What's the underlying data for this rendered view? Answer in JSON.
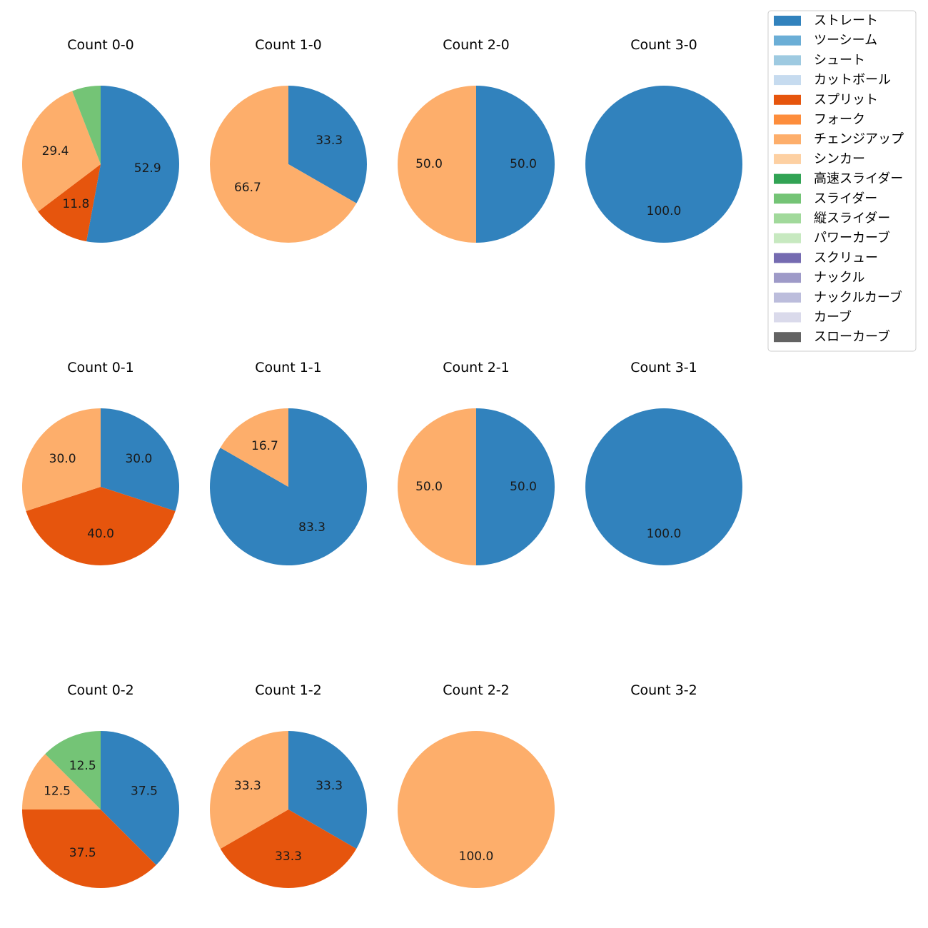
{
  "chart_data": {
    "type": "pie",
    "pitch_types": [
      {
        "name": "ストレート",
        "color": "#3182bd"
      },
      {
        "name": "ツーシーム",
        "color": "#6baed6"
      },
      {
        "name": "シュート",
        "color": "#9ecae1"
      },
      {
        "name": "カットボール",
        "color": "#c6dbef"
      },
      {
        "name": "スプリット",
        "color": "#e6550d"
      },
      {
        "name": "フォーク",
        "color": "#fd8d3c"
      },
      {
        "name": "チェンジアップ",
        "color": "#fdae6b"
      },
      {
        "name": "シンカー",
        "color": "#fdd0a2"
      },
      {
        "name": "高速スライダー",
        "color": "#31a354"
      },
      {
        "name": "スライダー",
        "color": "#74c476"
      },
      {
        "name": "縦スライダー",
        "color": "#a1d99b"
      },
      {
        "name": "パワーカーブ",
        "color": "#c7e9c0"
      },
      {
        "name": "スクリュー",
        "color": "#756bb1"
      },
      {
        "name": "ナックル",
        "color": "#9e9ac8"
      },
      {
        "name": "ナックルカーブ",
        "color": "#bcbddc"
      },
      {
        "name": "カーブ",
        "color": "#dadaeb"
      },
      {
        "name": "スローカーブ",
        "color": "#636363"
      }
    ],
    "panels": [
      {
        "title": "Count 0-0",
        "slices": [
          {
            "pitch": "ストレート",
            "value": 52.9
          },
          {
            "pitch": "スプリット",
            "value": 11.8
          },
          {
            "pitch": "チェンジアップ",
            "value": 29.4
          },
          {
            "pitch": "スライダー",
            "value": 5.9
          }
        ]
      },
      {
        "title": "Count 1-0",
        "slices": [
          {
            "pitch": "ストレート",
            "value": 33.3
          },
          {
            "pitch": "チェンジアップ",
            "value": 66.7
          }
        ]
      },
      {
        "title": "Count 2-0",
        "slices": [
          {
            "pitch": "ストレート",
            "value": 50.0
          },
          {
            "pitch": "チェンジアップ",
            "value": 50.0
          }
        ]
      },
      {
        "title": "Count 3-0",
        "slices": [
          {
            "pitch": "ストレート",
            "value": 100.0
          }
        ]
      },
      {
        "title": "Count 0-1",
        "slices": [
          {
            "pitch": "ストレート",
            "value": 30.0
          },
          {
            "pitch": "スプリット",
            "value": 40.0
          },
          {
            "pitch": "チェンジアップ",
            "value": 30.0
          }
        ]
      },
      {
        "title": "Count 1-1",
        "slices": [
          {
            "pitch": "ストレート",
            "value": 83.3
          },
          {
            "pitch": "チェンジアップ",
            "value": 16.7
          }
        ]
      },
      {
        "title": "Count 2-1",
        "slices": [
          {
            "pitch": "ストレート",
            "value": 50.0
          },
          {
            "pitch": "チェンジアップ",
            "value": 50.0
          }
        ]
      },
      {
        "title": "Count 3-1",
        "slices": [
          {
            "pitch": "ストレート",
            "value": 100.0
          }
        ]
      },
      {
        "title": "Count 0-2",
        "slices": [
          {
            "pitch": "ストレート",
            "value": 37.5
          },
          {
            "pitch": "スプリット",
            "value": 37.5
          },
          {
            "pitch": "チェンジアップ",
            "value": 12.5
          },
          {
            "pitch": "スライダー",
            "value": 12.5
          }
        ]
      },
      {
        "title": "Count 1-2",
        "slices": [
          {
            "pitch": "ストレート",
            "value": 33.3
          },
          {
            "pitch": "スプリット",
            "value": 33.3
          },
          {
            "pitch": "チェンジアップ",
            "value": 33.3
          }
        ]
      },
      {
        "title": "Count 2-2",
        "slices": [
          {
            "pitch": "チェンジアップ",
            "value": 100.0
          }
        ]
      },
      {
        "title": "Count 3-2",
        "slices": []
      }
    ],
    "legend_position": "top-right"
  }
}
